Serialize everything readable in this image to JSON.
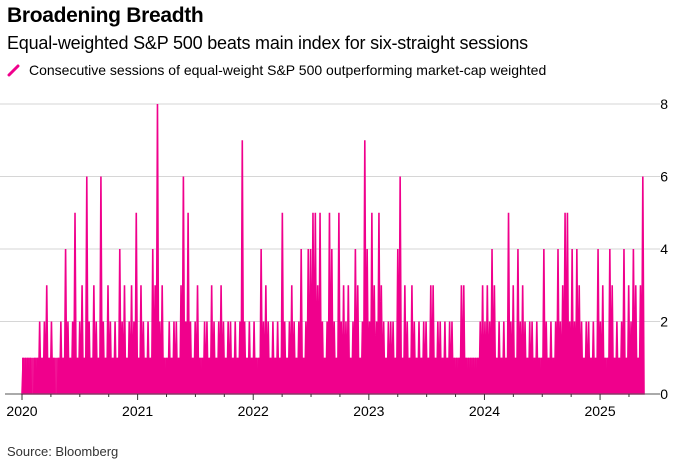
{
  "header": {
    "title": "Broadening Breadth",
    "subtitle": "Equal-weighted S&P 500 beats main index for six-straight sessions"
  },
  "footer": {
    "source": "Source: Bloomberg"
  },
  "colors": {
    "series": "#f0008c",
    "grid": "#d6d6d6",
    "axis": "#000000"
  },
  "chart_data": {
    "type": "area",
    "title": "Broadening Breadth",
    "subtitle": "Equal-weighted S&P 500 beats main index for six-straight sessions",
    "legend": [
      {
        "name": "Consecutive sessions of equal-weight S&P 500 outperforming market-cap weighted",
        "color": "#f0008c",
        "placement": "top-left"
      }
    ],
    "xlabel": "",
    "ylabel": "",
    "x_range": [
      2020.0,
      2025.38
    ],
    "ylim": [
      0,
      8
    ],
    "y_ticks": [
      0,
      2,
      4,
      6,
      8
    ],
    "x_ticks": [
      "2020",
      "2021",
      "2022",
      "2023",
      "2024",
      "2025"
    ],
    "x_tick_values": [
      2020,
      2021,
      2022,
      2023,
      2024,
      2025
    ],
    "grid": true,
    "y_axis_side": "right",
    "notes": "Series approximated from visual: per-session streak counts, sampled at ~weekly resolution (values are peak streak within each bin).",
    "series": [
      {
        "name": "Consecutive sessions of equal-weight S&P 500 outperforming market-cap weighted",
        "values": [
          1,
          1,
          1,
          1,
          0,
          1,
          1,
          2,
          1,
          2,
          3,
          1,
          2,
          1,
          0,
          1,
          2,
          1,
          4,
          2,
          1,
          2,
          5,
          1,
          2,
          3,
          1,
          6,
          2,
          1,
          3,
          2,
          1,
          6,
          2,
          1,
          3,
          2,
          1,
          2,
          1,
          4,
          2,
          3,
          1,
          2,
          3,
          2,
          5,
          1,
          3,
          2,
          1,
          2,
          1,
          4,
          3,
          8,
          2,
          3,
          1,
          1,
          2,
          1,
          2,
          2,
          1,
          3,
          6,
          2,
          5,
          2,
          1,
          2,
          3,
          1,
          1,
          2,
          2,
          1,
          3,
          2,
          1,
          2,
          3,
          2,
          1,
          2,
          2,
          1,
          2,
          1,
          2,
          7,
          2,
          1,
          2,
          1,
          2,
          1,
          1,
          4,
          2,
          3,
          2,
          1,
          2,
          1,
          2,
          1,
          5,
          2,
          1,
          2,
          3,
          2,
          1,
          2,
          4,
          1,
          2,
          4,
          4,
          5,
          5,
          3,
          5,
          2,
          1,
          2,
          5,
          4,
          2,
          1,
          5,
          2,
          3,
          2,
          3,
          1,
          2,
          4,
          3,
          1,
          2,
          7,
          4,
          2,
          5,
          3,
          2,
          5,
          3,
          2,
          1,
          2,
          2,
          2,
          1,
          4,
          6,
          1,
          3,
          2,
          1,
          3,
          2,
          1,
          2,
          1,
          2,
          2,
          1,
          3,
          3,
          1,
          2,
          2,
          1,
          2,
          1,
          2,
          2,
          1,
          1,
          1,
          3,
          3,
          1,
          1,
          1,
          1,
          1,
          1,
          2,
          3,
          2,
          3,
          2,
          4,
          3,
          1,
          2,
          1,
          2,
          1,
          5,
          2,
          3,
          1,
          4,
          2,
          3,
          2,
          1,
          2,
          2,
          1,
          2,
          1,
          1,
          4,
          2,
          1,
          2,
          1,
          2,
          4,
          2,
          3,
          5,
          5,
          2,
          4,
          2,
          4,
          3,
          2,
          1,
          2,
          2,
          1,
          2,
          1,
          4,
          2,
          3,
          1,
          1,
          4,
          3,
          1,
          2,
          1,
          2,
          4,
          1,
          3,
          2,
          4,
          3,
          1,
          3,
          6
        ]
      }
    ]
  }
}
